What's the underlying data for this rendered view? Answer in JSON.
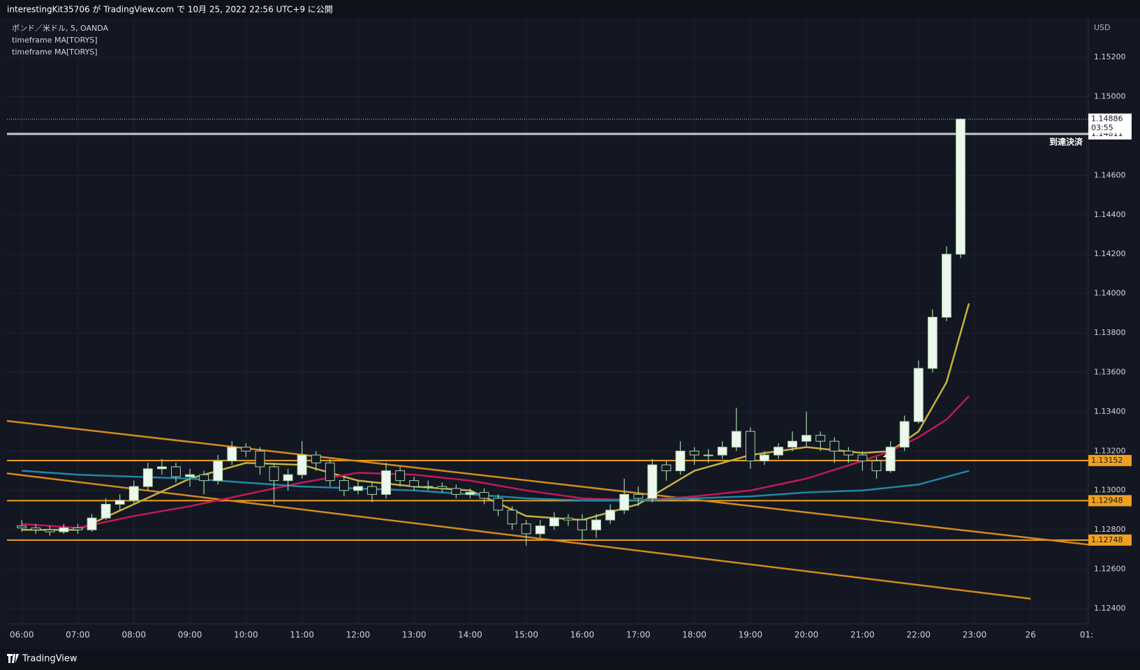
{
  "chart_data": {
    "type": "candlestick",
    "title": "interestingKit35706 が TradingView.com で 10月 25, 2022 22:56 UTC+9 に公開",
    "legend": [
      "ポンド／米ドル, 5, OANDA",
      "timeframe MA[TORYS]",
      "timeframe MA[TORYS]"
    ],
    "y_unit": "USD",
    "brand": "TradingView",
    "xlim": [
      5.736,
      25.03
    ],
    "xticks": [
      {
        "value": 6,
        "label": "06:00"
      },
      {
        "value": 7,
        "label": "07:00"
      },
      {
        "value": 8,
        "label": "08:00"
      },
      {
        "value": 9,
        "label": "09:00"
      },
      {
        "value": 10,
        "label": "10:00"
      },
      {
        "value": 11,
        "label": "11:00"
      },
      {
        "value": 12,
        "label": "12:00"
      },
      {
        "value": 13,
        "label": "13:00"
      },
      {
        "value": 14,
        "label": "14:00"
      },
      {
        "value": 15,
        "label": "15:00"
      },
      {
        "value": 16,
        "label": "16:00"
      },
      {
        "value": 17,
        "label": "17:00"
      },
      {
        "value": 18,
        "label": "18:00"
      },
      {
        "value": 19,
        "label": "19:00"
      },
      {
        "value": 20,
        "label": "20:00"
      },
      {
        "value": 21,
        "label": "21:00"
      },
      {
        "value": 22,
        "label": "22:00"
      },
      {
        "value": 23,
        "label": "23:00"
      },
      {
        "value": 24,
        "label": "26"
      },
      {
        "value": 25,
        "label": "01:"
      }
    ],
    "ylim": [
      1.12322,
      1.15399
    ],
    "yticks": [
      {
        "value": 1.124,
        "label": "1.12400"
      },
      {
        "value": 1.126,
        "label": "1.12600"
      },
      {
        "value": 1.128,
        "label": "1.12800"
      },
      {
        "value": 1.13,
        "label": "1.13000"
      },
      {
        "value": 1.132,
        "label": "1.13200"
      },
      {
        "value": 1.134,
        "label": "1.13400"
      },
      {
        "value": 1.136,
        "label": "1.13600"
      },
      {
        "value": 1.138,
        "label": "1.13800"
      },
      {
        "value": 1.14,
        "label": "1.14000"
      },
      {
        "value": 1.142,
        "label": "1.14200"
      },
      {
        "value": 1.144,
        "label": "1.14400"
      },
      {
        "value": 1.146,
        "label": "1.14600"
      },
      {
        "value": 1.148,
        "label": "1.14800"
      },
      {
        "value": 1.15,
        "label": "1.15000"
      },
      {
        "value": 1.152,
        "label": "1.15200"
      }
    ],
    "grid": true,
    "up_color": "#eef7ee",
    "down_color": "#131722",
    "wick_color": "#a5d6a7",
    "candles": {
      "x": [
        6,
        6.25,
        6.5,
        6.75,
        7,
        7.25,
        7.5,
        7.75,
        8,
        8.25,
        8.5,
        8.75,
        9,
        9.25,
        9.5,
        9.75,
        10,
        10.25,
        10.5,
        10.75,
        11,
        11.25,
        11.5,
        11.75,
        12,
        12.25,
        12.5,
        12.75,
        13,
        13.25,
        13.5,
        13.75,
        14,
        14.25,
        14.5,
        14.75,
        15,
        15.25,
        15.5,
        15.75,
        16,
        16.25,
        16.5,
        16.75,
        17,
        17.25,
        17.5,
        17.75,
        18,
        18.25,
        18.5,
        18.75,
        19,
        19.25,
        19.5,
        19.75,
        20,
        20.25,
        20.5,
        20.75,
        21,
        21.25,
        21.5,
        21.75,
        22,
        22.25,
        22.5,
        22.75
      ],
      "open": [
        1.1282,
        1.1281,
        1.128,
        1.1279,
        1.1281,
        1.128,
        1.1286,
        1.1293,
        1.1295,
        1.1302,
        1.1311,
        1.1312,
        1.1307,
        1.1308,
        1.1305,
        1.1315,
        1.1322,
        1.132,
        1.1312,
        1.1305,
        1.1308,
        1.1318,
        1.1314,
        1.1305,
        1.13,
        1.1302,
        1.1298,
        1.131,
        1.1305,
        1.1302,
        1.1302,
        1.1301,
        1.1298,
        1.1299,
        1.1296,
        1.129,
        1.1283,
        1.1278,
        1.1282,
        1.1286,
        1.1285,
        1.128,
        1.1285,
        1.129,
        1.1298,
        1.1296,
        1.1313,
        1.131,
        1.132,
        1.1318,
        1.1318,
        1.1322,
        1.133,
        1.1315,
        1.1318,
        1.1322,
        1.1325,
        1.1328,
        1.1325,
        1.132,
        1.1318,
        1.1315,
        1.131,
        1.1322,
        1.1335,
        1.1362,
        1.1388,
        1.142
      ],
      "high": [
        1.1285,
        1.1283,
        1.1282,
        1.1283,
        1.1283,
        1.1288,
        1.1296,
        1.1298,
        1.1305,
        1.1314,
        1.1316,
        1.1314,
        1.1311,
        1.131,
        1.1318,
        1.1325,
        1.1324,
        1.1322,
        1.1314,
        1.1311,
        1.1325,
        1.132,
        1.1316,
        1.1307,
        1.1305,
        1.1304,
        1.1314,
        1.1312,
        1.1307,
        1.1305,
        1.1304,
        1.1303,
        1.1301,
        1.1301,
        1.1298,
        1.1292,
        1.1285,
        1.1285,
        1.1289,
        1.1288,
        1.1288,
        1.1288,
        1.1293,
        1.1306,
        1.1302,
        1.1316,
        1.1315,
        1.1325,
        1.1322,
        1.1321,
        1.1325,
        1.1342,
        1.1332,
        1.132,
        1.1324,
        1.133,
        1.134,
        1.133,
        1.1327,
        1.1322,
        1.132,
        1.1317,
        1.1325,
        1.1338,
        1.1366,
        1.1392,
        1.1424,
        1.1489
      ],
      "low": [
        1.1279,
        1.1278,
        1.1277,
        1.1278,
        1.1278,
        1.1279,
        1.1285,
        1.129,
        1.1293,
        1.13,
        1.1308,
        1.1304,
        1.1302,
        1.1298,
        1.1303,
        1.1313,
        1.1317,
        1.1308,
        1.1293,
        1.13,
        1.1306,
        1.131,
        1.1302,
        1.1297,
        1.1298,
        1.1294,
        1.1296,
        1.1302,
        1.13,
        1.13,
        1.1299,
        1.1296,
        1.1296,
        1.1293,
        1.1287,
        1.128,
        1.1272,
        1.1276,
        1.128,
        1.1282,
        1.1275,
        1.1276,
        1.1283,
        1.1288,
        1.1292,
        1.1294,
        1.1305,
        1.1308,
        1.1313,
        1.1314,
        1.1316,
        1.132,
        1.1311,
        1.1313,
        1.1316,
        1.132,
        1.1322,
        1.132,
        1.1314,
        1.1314,
        1.131,
        1.1306,
        1.1309,
        1.132,
        1.1334,
        1.136,
        1.1386,
        1.1418
      ],
      "close": [
        1.1281,
        1.128,
        1.1279,
        1.1281,
        1.128,
        1.1286,
        1.1293,
        1.1295,
        1.1302,
        1.1311,
        1.1312,
        1.1307,
        1.1308,
        1.1305,
        1.1315,
        1.1322,
        1.132,
        1.1312,
        1.1305,
        1.1308,
        1.1318,
        1.1314,
        1.1305,
        1.13,
        1.1302,
        1.1298,
        1.131,
        1.1305,
        1.1302,
        1.1302,
        1.1301,
        1.1298,
        1.1299,
        1.1296,
        1.129,
        1.1283,
        1.1278,
        1.1282,
        1.1286,
        1.1285,
        1.128,
        1.1285,
        1.129,
        1.1298,
        1.1296,
        1.1313,
        1.131,
        1.132,
        1.1318,
        1.1318,
        1.1322,
        1.133,
        1.1315,
        1.1318,
        1.1322,
        1.1325,
        1.1328,
        1.1325,
        1.132,
        1.1318,
        1.1315,
        1.131,
        1.1322,
        1.1335,
        1.1362,
        1.1388,
        1.142,
        1.14886
      ]
    },
    "series": [
      {
        "color": "#c5b340",
        "x": [
          6,
          7,
          8,
          9,
          10,
          11,
          12,
          13,
          14,
          15,
          16,
          17,
          18,
          19,
          20,
          21,
          21.5,
          22,
          22.5,
          22.9
        ],
        "values": [
          1.128,
          1.128,
          1.1293,
          1.1306,
          1.1314,
          1.1313,
          1.1305,
          1.1302,
          1.13,
          1.1287,
          1.1285,
          1.1293,
          1.131,
          1.1318,
          1.1322,
          1.1319,
          1.132,
          1.133,
          1.1355,
          1.1395
        ]
      },
      {
        "color": "#c2185b",
        "x": [
          6,
          7,
          8,
          9,
          10,
          11,
          12,
          13,
          14,
          15,
          16,
          17,
          18,
          19,
          20,
          21,
          21.5,
          22,
          22.5,
          22.9
        ],
        "values": [
          1.1283,
          1.1281,
          1.1287,
          1.1292,
          1.1298,
          1.1304,
          1.1309,
          1.1308,
          1.1305,
          1.13,
          1.1296,
          1.1295,
          1.1297,
          1.13,
          1.1306,
          1.1315,
          1.132,
          1.1327,
          1.1336,
          1.1348
        ]
      },
      {
        "color": "#1e88a8",
        "x": [
          6,
          7,
          8,
          9,
          10,
          11,
          12,
          13,
          14,
          15,
          16,
          17,
          18,
          19,
          20,
          21,
          22,
          22.9
        ],
        "values": [
          1.131,
          1.1308,
          1.1307,
          1.1306,
          1.1304,
          1.1302,
          1.1301,
          1.13,
          1.1298,
          1.1296,
          1.1295,
          1.1295,
          1.1296,
          1.1297,
          1.1299,
          1.13,
          1.1303,
          1.131
        ]
      }
    ],
    "trendlines": [
      {
        "color": "#d68a1c",
        "x": [
          5.736,
          25.03
        ],
        "values": [
          1.13353,
          1.12725
        ]
      },
      {
        "color": "#d68a1c",
        "x": [
          5.736,
          24
        ],
        "values": [
          1.13087,
          1.1245
        ]
      }
    ],
    "levels": [
      {
        "value": 1.13152,
        "color": "#f0a020"
      },
      {
        "value": 1.12948,
        "color": "#f0a020"
      },
      {
        "value": 1.12748,
        "color": "#f0a020"
      }
    ],
    "target": {
      "value": 1.14811,
      "label": "到達決済"
    },
    "last_price": 1.14886,
    "countdown": "03:55"
  }
}
